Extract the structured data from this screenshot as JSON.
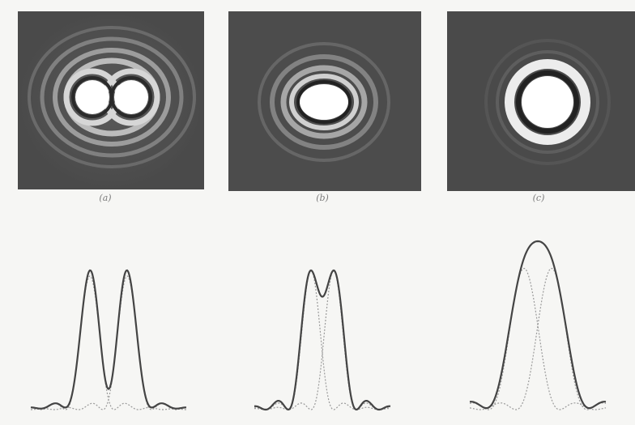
{
  "captions": {
    "a": "(a)",
    "b": "(b)",
    "c": "(c)"
  },
  "colors": {
    "panel_background": "#4a4a4a",
    "ring_bright": "#ffffff",
    "ring_dark": "#1a1a1a",
    "curve_total": "#444444",
    "curve_component": "#9a9a9a"
  }
}
